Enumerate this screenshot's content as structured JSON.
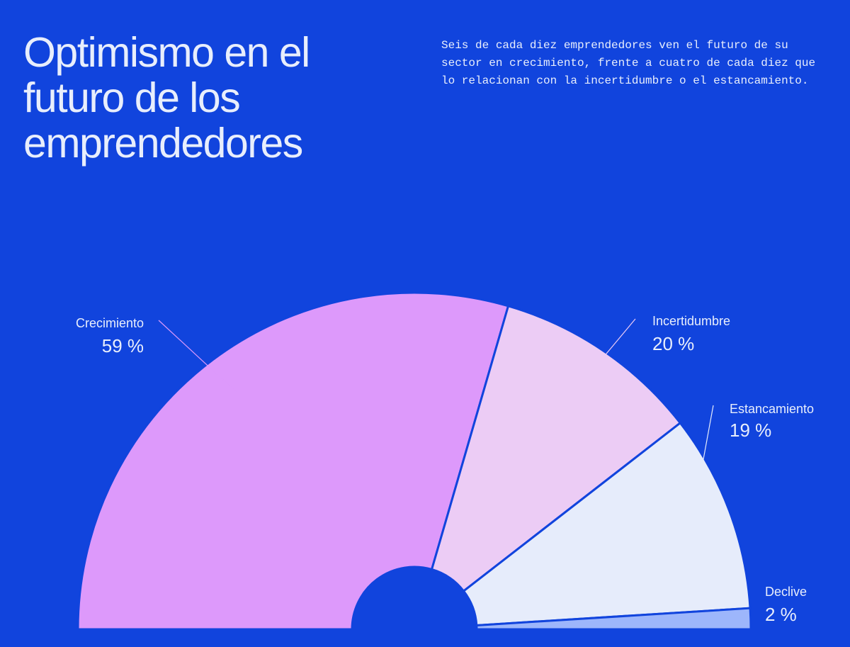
{
  "chart_data": {
    "type": "pie",
    "title": "Optimismo en el futuro de los emprendedores",
    "subtitle": "Seis de cada diez emprendedores ven el futuro de su sector en crecimiento, frente a cuatro de cada diez que lo relacionan con la incertidumbre o el estancamiento.",
    "categories": [
      "Crecimiento",
      "Incertidumbre",
      "Estancamiento",
      "Declive"
    ],
    "values": [
      59,
      20,
      19,
      2
    ],
    "value_labels": [
      "59 %",
      "20 %",
      "19 %",
      "2 %"
    ],
    "colors": [
      "#dd99fb",
      "#ecccf5",
      "#e6ecfb",
      "#9db6fb"
    ]
  }
}
